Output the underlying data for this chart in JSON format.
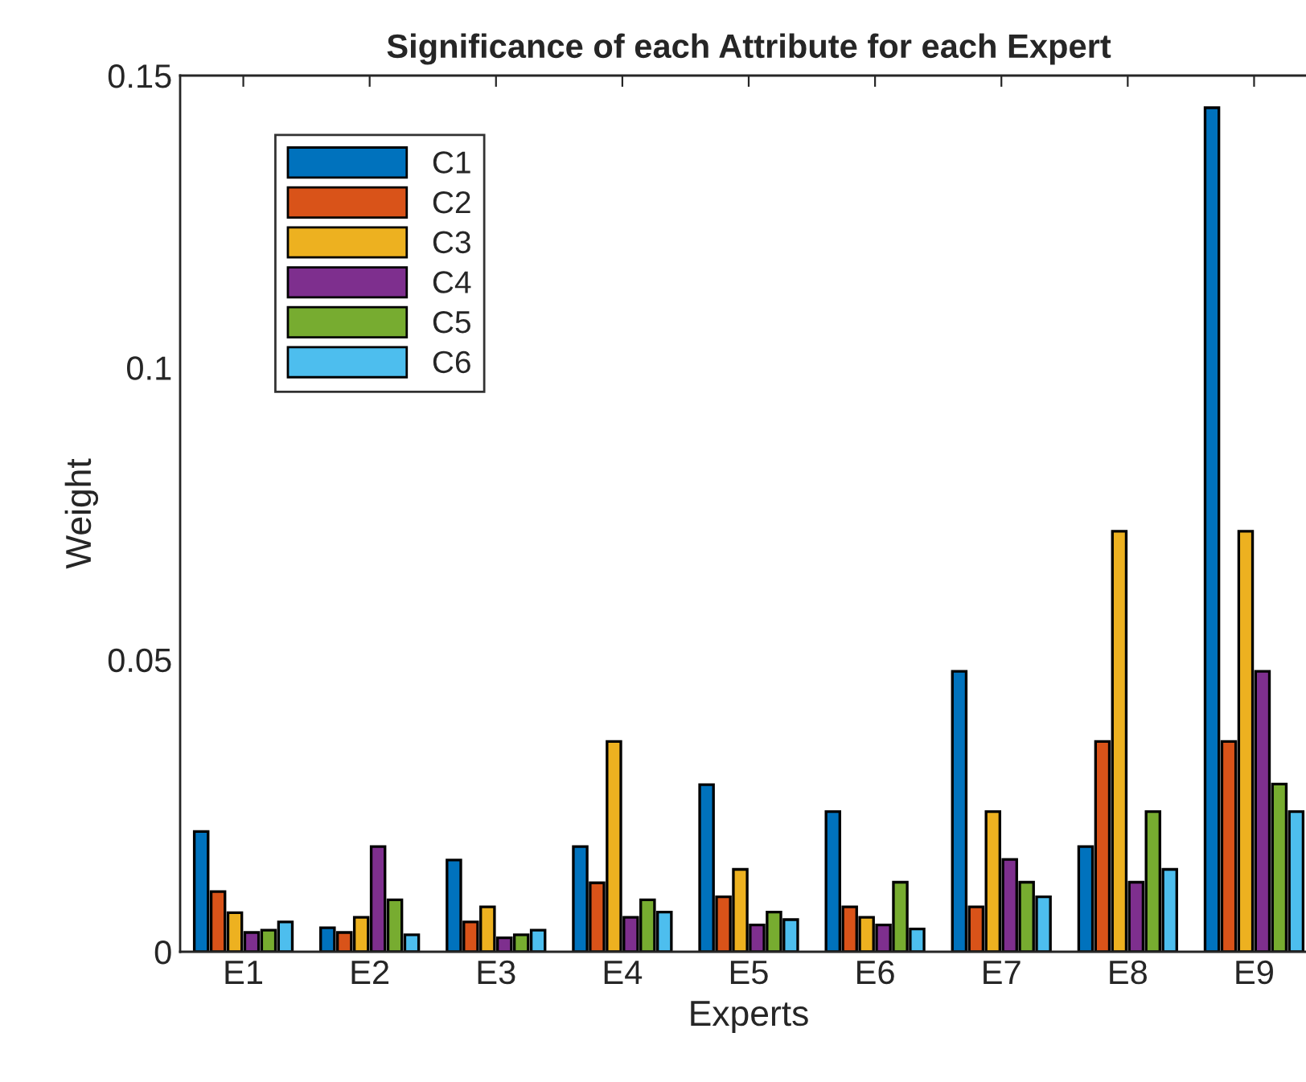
{
  "chart_data": {
    "type": "bar",
    "title": "Significance of each Attribute for each Expert",
    "xlabel": "Experts",
    "ylabel": "Weight",
    "categories": [
      "E1",
      "E2",
      "E3",
      "E4",
      "E5",
      "E6",
      "E7",
      "E8",
      "E9"
    ],
    "series": [
      {
        "name": "C1",
        "color": "#0072bd",
        "values": [
          0.0206,
          0.0041,
          0.0157,
          0.018,
          0.0286,
          0.024,
          0.048,
          0.018,
          0.1445
        ]
      },
      {
        "name": "C2",
        "color": "#d95319",
        "values": [
          0.0103,
          0.0033,
          0.0051,
          0.0118,
          0.0094,
          0.0077,
          0.0077,
          0.036,
          0.036
        ]
      },
      {
        "name": "C3",
        "color": "#edb120",
        "values": [
          0.0067,
          0.0059,
          0.0077,
          0.036,
          0.0141,
          0.0059,
          0.024,
          0.072,
          0.072
        ]
      },
      {
        "name": "C4",
        "color": "#7e2f8e",
        "values": [
          0.0033,
          0.018,
          0.0024,
          0.0059,
          0.0046,
          0.0046,
          0.0158,
          0.0119,
          0.048
        ]
      },
      {
        "name": "C5",
        "color": "#77ac30",
        "values": [
          0.0037,
          0.0089,
          0.0029,
          0.0089,
          0.0068,
          0.0119,
          0.0119,
          0.024,
          0.0287
        ]
      },
      {
        "name": "C6",
        "color": "#4dbeee",
        "values": [
          0.0051,
          0.0029,
          0.0037,
          0.0068,
          0.0055,
          0.0039,
          0.0094,
          0.0141,
          0.024
        ]
      }
    ],
    "ylim": [
      0,
      0.15
    ],
    "yticks": [
      {
        "value": 0,
        "label": "0"
      },
      {
        "value": 0.05,
        "label": "0.05"
      },
      {
        "value": 0.1,
        "label": "0.1"
      },
      {
        "value": 0.15,
        "label": "0.15"
      }
    ],
    "grid": false,
    "legend": "top left"
  }
}
